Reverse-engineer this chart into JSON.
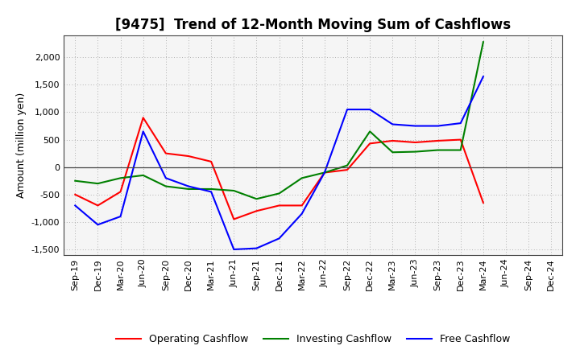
{
  "title": "[9475]  Trend of 12-Month Moving Sum of Cashflows",
  "ylabel": "Amount (million yen)",
  "x_labels": [
    "Sep-19",
    "Dec-19",
    "Mar-20",
    "Jun-20",
    "Sep-20",
    "Dec-20",
    "Mar-21",
    "Jun-21",
    "Sep-21",
    "Dec-21",
    "Mar-22",
    "Jun-22",
    "Sep-22",
    "Dec-22",
    "Mar-23",
    "Jun-23",
    "Sep-23",
    "Dec-23",
    "Mar-24",
    "Jun-24",
    "Sep-24",
    "Dec-24"
  ],
  "operating_cashflow": [
    -500,
    -700,
    -450,
    900,
    250,
    200,
    100,
    -950,
    -800,
    -700,
    -700,
    -100,
    -50,
    430,
    480,
    450,
    480,
    500,
    -650,
    null,
    null,
    null
  ],
  "investing_cashflow": [
    -250,
    -300,
    -200,
    -150,
    -350,
    -400,
    -400,
    -430,
    -580,
    -480,
    -200,
    -100,
    30,
    650,
    270,
    280,
    310,
    310,
    2280,
    null,
    null,
    null
  ],
  "free_cashflow": [
    -700,
    -1050,
    -900,
    650,
    -200,
    -350,
    -450,
    -1500,
    -1480,
    -1300,
    -850,
    -100,
    1050,
    1050,
    780,
    750,
    750,
    800,
    1650,
    null,
    null,
    null
  ],
  "operating_color": "#ff0000",
  "investing_color": "#008000",
  "free_color": "#0000ff",
  "ylim": [
    -1600,
    2400
  ],
  "yticks": [
    -1500,
    -1000,
    -500,
    0,
    500,
    1000,
    1500,
    2000
  ],
  "background_color": "#ffffff",
  "plot_bg_color": "#f5f5f5",
  "grid_color": "#999999",
  "title_fontsize": 12,
  "axis_fontsize": 9,
  "tick_fontsize": 8,
  "legend_fontsize": 9
}
